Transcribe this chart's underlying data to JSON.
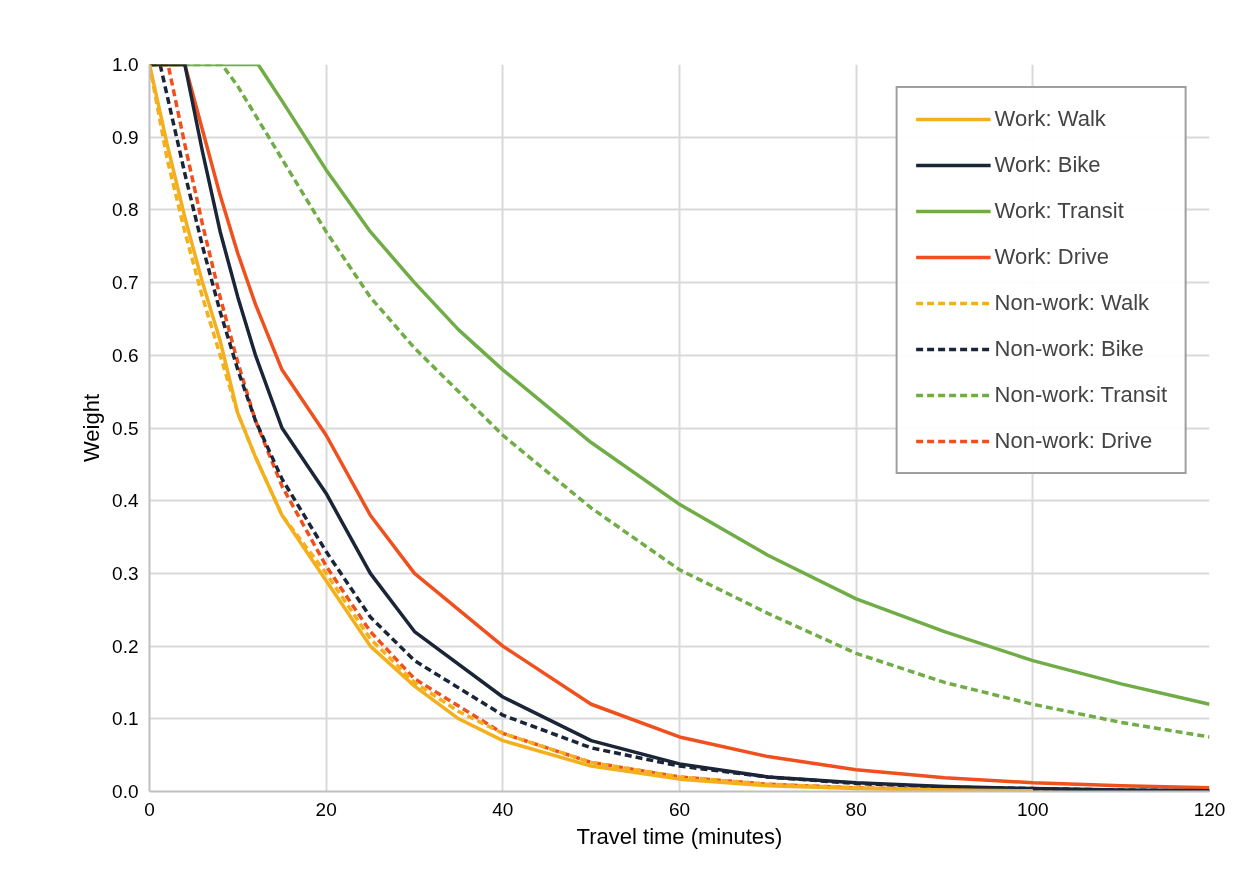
{
  "chart_data": {
    "type": "line",
    "xlabel": "Travel time (minutes)",
    "ylabel": "Weight",
    "xlim": [
      0,
      120
    ],
    "ylim": [
      0,
      1
    ],
    "xticks": [
      0,
      20,
      40,
      60,
      80,
      100,
      120
    ],
    "yticks": [
      {
        "value": 0,
        "label": "0.0"
      },
      {
        "value": 0.1,
        "label": "0.1"
      },
      {
        "value": 0.2,
        "label": "0.2"
      },
      {
        "value": 0.3,
        "label": "0.3"
      },
      {
        "value": 0.4,
        "label": "0.4"
      },
      {
        "value": 0.5,
        "label": "0.5"
      },
      {
        "value": 0.6,
        "label": "0.6"
      },
      {
        "value": 0.7,
        "label": "0.7"
      },
      {
        "value": 0.8,
        "label": "0.8"
      },
      {
        "value": 0.9,
        "label": "0.9"
      },
      {
        "value": 1,
        "label": "1.0"
      }
    ],
    "grid": true,
    "legend": "top right",
    "series": [
      {
        "name": "Work: Walk",
        "color": "#f4b01c",
        "line_style": "solid",
        "x": [
          0,
          2,
          4,
          6,
          8,
          10,
          12,
          15,
          20,
          25,
          30,
          35,
          40,
          50,
          60,
          70,
          80,
          90,
          100
        ],
        "values": [
          1.0,
          0.89,
          0.79,
          0.7,
          0.62,
          0.52,
          0.46,
          0.38,
          0.29,
          0.2,
          0.145,
          0.1,
          0.07,
          0.035,
          0.017,
          0.008,
          0.004,
          0.002,
          0.001
        ]
      },
      {
        "name": "Work: Bike",
        "color": "#1a2638",
        "line_style": "solid",
        "x": [
          0,
          4,
          6,
          8,
          10,
          12,
          15,
          20,
          25,
          30,
          40,
          50,
          60,
          70,
          80,
          90,
          100,
          110,
          120
        ],
        "values": [
          1.0,
          1.0,
          0.88,
          0.77,
          0.68,
          0.6,
          0.5,
          0.41,
          0.3,
          0.22,
          0.13,
          0.07,
          0.038,
          0.02,
          0.012,
          0.007,
          0.004,
          0.002,
          0.001
        ]
      },
      {
        "name": "Work: Transit",
        "color": "#70ad47",
        "line_style": "solid",
        "x": [
          0,
          12.3,
          15,
          20,
          25,
          30,
          35,
          40,
          50,
          60,
          70,
          80,
          90,
          100,
          110,
          120
        ],
        "values": [
          1,
          1,
          0.95,
          0.855,
          0.77,
          0.7,
          0.635,
          0.58,
          0.48,
          0.395,
          0.325,
          0.265,
          0.22,
          0.18,
          0.148,
          0.12
        ]
      },
      {
        "name": "Work: Drive",
        "color": "#f0501e",
        "line_style": "solid",
        "x": [
          0,
          4,
          6,
          8,
          10,
          12,
          15,
          20,
          25,
          30,
          40,
          50,
          60,
          70,
          80,
          90,
          100,
          110,
          120
        ],
        "values": [
          1.0,
          1.0,
          0.91,
          0.82,
          0.74,
          0.67,
          0.58,
          0.49,
          0.38,
          0.3,
          0.2,
          0.12,
          0.075,
          0.048,
          0.03,
          0.019,
          0.012,
          0.008,
          0.005
        ]
      },
      {
        "name": "Non-work: Walk",
        "color": "#f4b01c",
        "line_style": "dashed",
        "x": [
          0,
          2,
          4,
          6,
          8,
          10,
          12,
          15,
          20,
          25,
          30,
          35,
          40,
          50,
          60,
          70,
          80,
          90,
          100
        ],
        "values": [
          1.0,
          0.87,
          0.77,
          0.68,
          0.6,
          0.52,
          0.46,
          0.38,
          0.3,
          0.21,
          0.15,
          0.11,
          0.08,
          0.04,
          0.02,
          0.01,
          0.005,
          0.002,
          0.001
        ]
      },
      {
        "name": "Non-work: Bike",
        "color": "#1a2638",
        "line_style": "dashed",
        "x": [
          0,
          1.2,
          4,
          6,
          8,
          10,
          12,
          15,
          20,
          25,
          30,
          40,
          50,
          60,
          70,
          80,
          90,
          100,
          110,
          120
        ],
        "values": [
          1.0,
          1.0,
          0.85,
          0.75,
          0.66,
          0.58,
          0.51,
          0.43,
          0.33,
          0.24,
          0.18,
          0.105,
          0.06,
          0.035,
          0.02,
          0.011,
          0.006,
          0.004,
          0.002,
          0.001
        ]
      },
      {
        "name": "Non-work: Transit",
        "color": "#70ad47",
        "line_style": "dashed",
        "x": [
          0,
          8.2,
          10,
          15,
          20,
          25,
          30,
          40,
          50,
          60,
          70,
          80,
          90,
          100,
          110,
          120
        ],
        "values": [
          1,
          1,
          0.97,
          0.87,
          0.77,
          0.68,
          0.61,
          0.49,
          0.39,
          0.305,
          0.245,
          0.19,
          0.15,
          0.12,
          0.095,
          0.075
        ]
      },
      {
        "name": "Non-work: Drive",
        "color": "#f0501e",
        "line_style": "dashed",
        "x": [
          0,
          2.1,
          4,
          6,
          8,
          10,
          12,
          15,
          20,
          25,
          30,
          40,
          50,
          60,
          70,
          80,
          90,
          100,
          110,
          120
        ],
        "values": [
          1.0,
          1.0,
          0.89,
          0.78,
          0.68,
          0.59,
          0.51,
          0.42,
          0.31,
          0.22,
          0.155,
          0.08,
          0.04,
          0.02,
          0.01,
          0.005,
          0.003,
          0.002,
          0.001,
          0.0
        ]
      }
    ]
  }
}
